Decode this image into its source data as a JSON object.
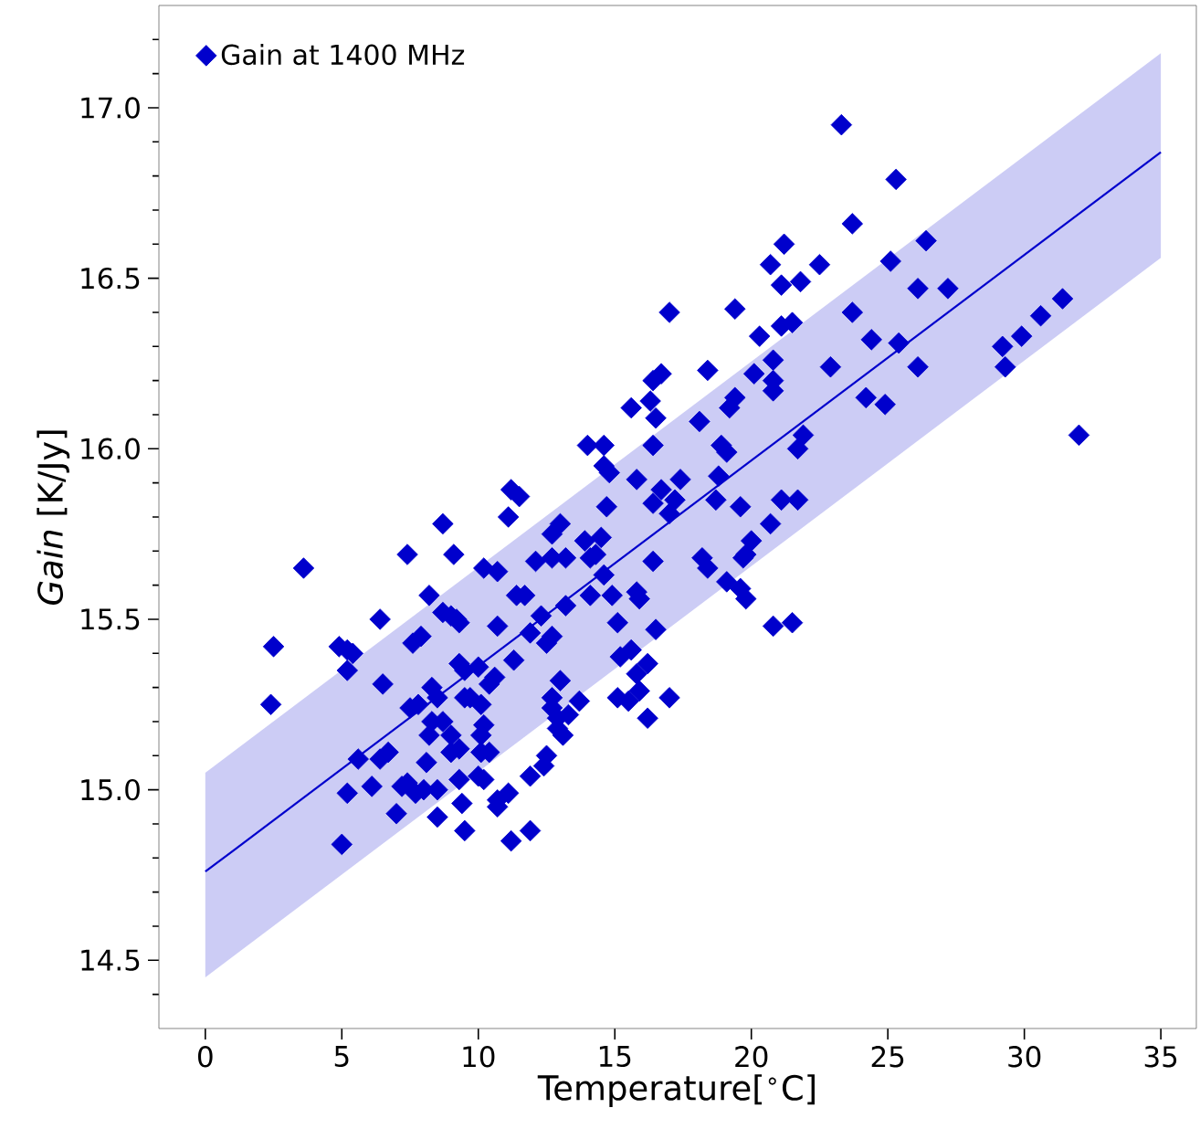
{
  "chart_data": {
    "type": "scatter",
    "xlabel": "Temperature[$^{∘}$C]",
    "ylabel": "*Gain* [K/Jy]",
    "xlim": [
      -1.7,
      36.3
    ],
    "ylim": [
      14.3,
      17.3
    ],
    "xticks": [
      0,
      5,
      10,
      15,
      20,
      25,
      30,
      35
    ],
    "yticks": [
      {
        "value": 14.4,
        "label": null
      },
      {
        "value": 14.5,
        "label": "14.5"
      },
      {
        "value": 14.6,
        "label": null
      },
      {
        "value": 14.7,
        "label": null
      },
      {
        "value": 14.8,
        "label": null
      },
      {
        "value": 14.9,
        "label": null
      },
      {
        "value": 15.0,
        "label": "15.0"
      },
      {
        "value": 15.1,
        "label": null
      },
      {
        "value": 15.2,
        "label": null
      },
      {
        "value": 15.3,
        "label": null
      },
      {
        "value": 15.4,
        "label": null
      },
      {
        "value": 15.5,
        "label": "15.5"
      },
      {
        "value": 15.6,
        "label": null
      },
      {
        "value": 15.7,
        "label": null
      },
      {
        "value": 15.8,
        "label": null
      },
      {
        "value": 15.9,
        "label": null
      },
      {
        "value": 16.0,
        "label": "16.0"
      },
      {
        "value": 16.1,
        "label": null
      },
      {
        "value": 16.2,
        "label": null
      },
      {
        "value": 16.3,
        "label": null
      },
      {
        "value": 16.4,
        "label": null
      },
      {
        "value": 16.5,
        "label": "16.5"
      },
      {
        "value": 16.6,
        "label": null
      },
      {
        "value": 16.7,
        "label": null
      },
      {
        "value": 16.8,
        "label": null
      },
      {
        "value": 16.9,
        "label": null
      },
      {
        "value": 17.0,
        "label": "17.0"
      },
      {
        "value": 17.1,
        "label": null
      },
      {
        "value": 17.2,
        "label": null
      }
    ],
    "legend": "top left",
    "series": [
      {
        "type": "line",
        "color": "#0000cc",
        "x": [
          0,
          35
        ],
        "values": [
          14.76,
          16.87
        ],
        "lower": [
          14.45,
          16.56
        ],
        "upper": [
          15.05,
          17.16
        ]
      },
      {
        "name": "Gain at 1400 MHz",
        "marker": "diamond",
        "color": "#0000cc",
        "x": [
          8.7,
          7.4,
          9.1,
          3.6,
          8.2,
          8.7,
          9.0,
          9.3,
          6.4,
          2.5,
          4.9,
          5.2,
          5.4,
          7.6,
          7.9,
          5.2,
          6.5,
          2.4,
          8.3,
          8.5,
          9.3,
          9.5,
          7.5,
          7.8,
          8.3,
          8.7,
          8.2,
          9.5,
          9.0,
          9.3,
          9.0,
          5.6,
          6.4,
          6.7,
          8.1,
          9.3,
          5.2,
          6.1,
          7.2,
          7.4,
          7.7,
          8.0,
          8.5,
          7.0,
          9.4,
          8.5,
          9.5,
          5.0,
          18.4,
          16.7,
          16.4,
          16.3,
          15.6,
          16.5,
          19.4,
          19.2,
          18.1,
          14.0,
          14.6,
          16.4,
          18.9,
          19.1,
          14.6,
          14.8,
          15.8,
          17.4,
          16.7,
          17.2,
          18.8,
          11.2,
          11.5,
          16.4,
          18.7,
          19.6,
          14.7,
          11.1,
          17.0,
          13.0,
          12.7,
          13.9,
          14.5,
          14.3,
          14.1,
          12.1,
          12.7,
          13.2,
          10.2,
          10.7,
          16.4,
          18.2,
          18.4,
          19.7,
          14.6,
          19.1,
          19.6,
          19.8,
          11.4,
          11.7,
          14.1,
          14.9,
          15.8,
          15.9,
          13.2,
          9.2,
          15.1,
          16.5,
          10.7,
          11.9,
          12.3,
          12.5,
          12.7,
          10.0,
          11.3,
          15.2,
          15.6,
          10.6,
          10.4,
          13.0,
          15.8,
          16.2,
          9.7,
          10.1,
          15.1,
          15.5,
          15.9,
          17.0,
          12.7,
          12.7,
          12.9,
          12.9,
          13.1,
          13.7,
          13.3,
          16.2,
          10.2,
          10.1,
          10.1,
          10.4,
          12.5,
          12.4,
          11.9,
          10.0,
          10.2,
          11.1,
          10.7,
          10.7,
          11.9,
          11.2,
          23.3,
          25.3,
          23.7,
          21.2,
          26.4,
          20.7,
          21.1,
          21.8,
          22.5,
          25.1,
          26.1,
          27.2,
          19.4,
          23.7,
          21.1,
          21.5,
          20.3,
          24.4,
          25.4,
          31.4,
          30.6,
          29.9,
          29.2,
          29.3,
          26.1,
          22.9,
          20.8,
          20.1,
          20.8,
          20.8,
          24.2,
          24.9,
          32.0,
          21.9,
          21.7,
          21.1,
          21.7,
          20.7,
          20.0,
          19.8,
          20.8,
          21.5,
          17.0
        ],
        "values": [
          15.78,
          15.69,
          15.69,
          15.65,
          15.57,
          15.52,
          15.51,
          15.49,
          15.5,
          15.42,
          15.42,
          15.41,
          15.4,
          15.43,
          15.45,
          15.35,
          15.31,
          15.25,
          15.3,
          15.27,
          15.37,
          15.35,
          15.24,
          15.25,
          15.2,
          15.2,
          15.16,
          15.27,
          15.16,
          15.12,
          15.11,
          15.09,
          15.09,
          15.11,
          15.08,
          15.03,
          14.99,
          15.01,
          15.01,
          15.02,
          14.99,
          15.0,
          15.0,
          14.93,
          14.96,
          14.92,
          14.88,
          14.84,
          16.23,
          16.22,
          16.2,
          16.14,
          16.12,
          16.09,
          16.15,
          16.12,
          16.08,
          16.01,
          16.01,
          16.01,
          16.01,
          15.99,
          15.95,
          15.93,
          15.91,
          15.91,
          15.88,
          15.85,
          15.92,
          15.88,
          15.86,
          15.84,
          15.85,
          15.83,
          15.83,
          15.8,
          15.81,
          15.78,
          15.75,
          15.73,
          15.74,
          15.69,
          15.68,
          15.67,
          15.68,
          15.68,
          15.65,
          15.64,
          15.67,
          15.68,
          15.65,
          15.68,
          15.63,
          15.61,
          15.59,
          15.56,
          15.57,
          15.57,
          15.57,
          15.57,
          15.58,
          15.56,
          15.54,
          15.5,
          15.49,
          15.47,
          15.48,
          15.46,
          15.51,
          15.43,
          15.45,
          15.36,
          15.38,
          15.39,
          15.41,
          15.33,
          15.31,
          15.32,
          15.34,
          15.37,
          15.27,
          15.25,
          15.27,
          15.26,
          15.29,
          15.27,
          15.27,
          15.24,
          15.21,
          15.18,
          15.16,
          15.26,
          15.22,
          15.21,
          15.19,
          15.16,
          15.11,
          15.11,
          15.1,
          15.07,
          15.04,
          15.04,
          15.03,
          14.99,
          14.97,
          14.95,
          14.88,
          14.85,
          16.95,
          16.79,
          16.66,
          16.6,
          16.61,
          16.54,
          16.48,
          16.49,
          16.54,
          16.55,
          16.47,
          16.47,
          16.41,
          16.4,
          16.36,
          16.37,
          16.33,
          16.32,
          16.31,
          16.44,
          16.39,
          16.33,
          16.3,
          16.24,
          16.24,
          16.24,
          16.26,
          16.22,
          16.2,
          16.17,
          16.15,
          16.13,
          16.04,
          16.04,
          16.0,
          15.85,
          15.85,
          15.78,
          15.73,
          15.69,
          15.48,
          15.49,
          16.4
        ]
      }
    ]
  }
}
